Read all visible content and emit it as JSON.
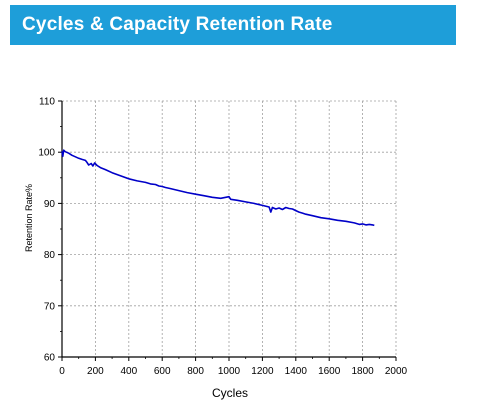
{
  "header": {
    "title": "Cycles & Capacity Retention Rate",
    "background_color": "#1e9ed9",
    "text_color": "#ffffff"
  },
  "chart_data": {
    "type": "line",
    "title": "Cycles & Capacity Retention Rate",
    "xlabel": "Cycles",
    "ylabel": "Retention Rate%",
    "xlim": [
      0,
      2000
    ],
    "ylim": [
      60,
      110
    ],
    "xticks": [
      0,
      200,
      400,
      600,
      800,
      1000,
      1200,
      1400,
      1600,
      1800,
      2000
    ],
    "yticks": [
      60,
      70,
      80,
      90,
      100,
      110
    ],
    "grid": true,
    "legend": "none",
    "series": [
      {
        "color": "#0000c8",
        "x": [
          0,
          5,
          10,
          20,
          40,
          60,
          80,
          100,
          120,
          140,
          150,
          160,
          175,
          185,
          195,
          210,
          230,
          260,
          300,
          350,
          400,
          450,
          500,
          530,
          560,
          580,
          600,
          620,
          650,
          700,
          750,
          800,
          850,
          900,
          950,
          1000,
          1010,
          1050,
          1100,
          1150,
          1200,
          1240,
          1250,
          1260,
          1280,
          1300,
          1320,
          1340,
          1360,
          1380,
          1400,
          1420,
          1440,
          1460,
          1500,
          1550,
          1600,
          1650,
          1700,
          1750,
          1780,
          1800,
          1820,
          1840,
          1860,
          1870
        ],
        "y": [
          100.2,
          99.2,
          100.4,
          100.1,
          99.8,
          99.4,
          99.1,
          98.8,
          98.6,
          98.4,
          98.0,
          97.5,
          97.8,
          97.3,
          97.9,
          97.4,
          97.0,
          96.6,
          96.0,
          95.4,
          94.8,
          94.4,
          94.1,
          93.8,
          93.7,
          93.4,
          93.3,
          93.1,
          92.9,
          92.5,
          92.1,
          91.8,
          91.5,
          91.2,
          91.0,
          91.3,
          90.8,
          90.6,
          90.3,
          90.0,
          89.6,
          89.3,
          88.3,
          89.2,
          88.9,
          89.1,
          88.8,
          89.2,
          89.0,
          88.9,
          88.6,
          88.3,
          88.1,
          87.9,
          87.6,
          87.2,
          87.0,
          86.7,
          86.5,
          86.2,
          85.9,
          86.0,
          85.8,
          85.9,
          85.8,
          85.7
        ]
      }
    ]
  }
}
